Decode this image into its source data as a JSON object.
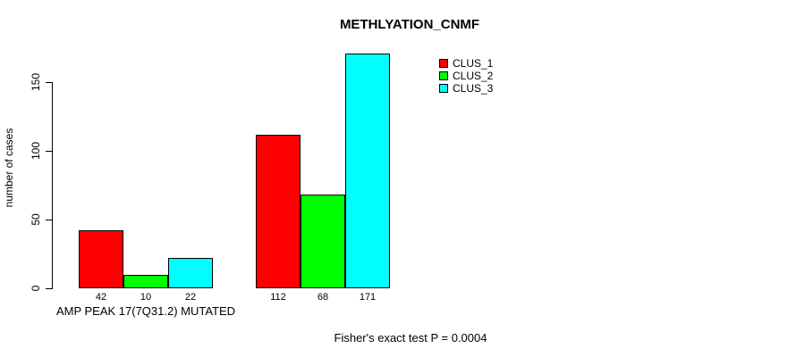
{
  "chart_data": {
    "type": "bar",
    "title": "METHLYATION_CNMF",
    "ylabel": "number of cases",
    "xlabel": "",
    "yticks": [
      0,
      50,
      100,
      150
    ],
    "ylim": [
      0,
      175
    ],
    "grid": false,
    "legend_position": "top-right",
    "categories": [
      "AMP PEAK 17(7Q31.2) MUTATED",
      ""
    ],
    "series": [
      {
        "name": "CLUS_1",
        "color": "#ff0000",
        "values": [
          42,
          112
        ]
      },
      {
        "name": "CLUS_2",
        "color": "#00ff00",
        "values": [
          10,
          68
        ]
      },
      {
        "name": "CLUS_3",
        "color": "#00ffff",
        "values": [
          22,
          171
        ]
      }
    ],
    "bar_value_labels": [
      [
        42,
        10,
        22
      ],
      [
        112,
        68,
        171
      ]
    ],
    "annotation": "Fisher's exact test P = 0.0004"
  }
}
